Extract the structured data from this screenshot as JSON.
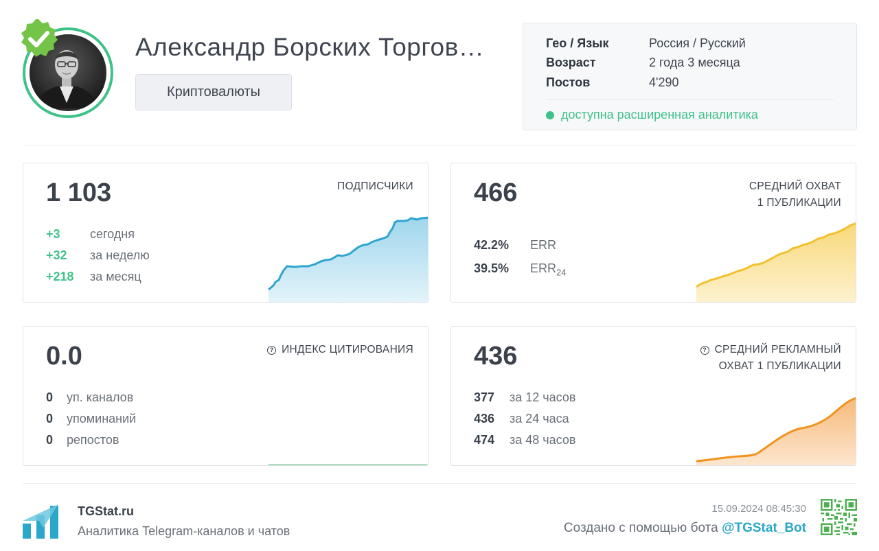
{
  "channel": {
    "title": "Александр Борских Торгов…",
    "category": "Криптовалюты"
  },
  "info": {
    "geo_label": "Гео / Язык",
    "geo_value": "Россия / Русский",
    "age_label": "Возраст",
    "age_value": "2 года 3 месяца",
    "posts_label": "Постов",
    "posts_value": "4'290",
    "analytics_text": "доступна расширенная аналитика"
  },
  "subscribers": {
    "value": "1 103",
    "label": "ПОДПИСЧИКИ",
    "rows": [
      {
        "n": "+3",
        "t": "сегодня"
      },
      {
        "n": "+32",
        "t": "за неделю"
      },
      {
        "n": "+218",
        "t": "за месяц"
      }
    ]
  },
  "reach": {
    "value": "466",
    "label_line1": "СРЕДНИЙ ОХВАТ",
    "label_line2": "1 ПУБЛИКАЦИИ",
    "err_value": "42.2%",
    "err_label": "ERR",
    "err24_value": "39.5%",
    "err24_label": "ERR",
    "err24_sub": "24"
  },
  "citation": {
    "value": "0.0",
    "label": "ИНДЕКС ЦИТИРОВАНИЯ",
    "rows": [
      {
        "n": "0",
        "t": "уп. каналов"
      },
      {
        "n": "0",
        "t": "упоминаний"
      },
      {
        "n": "0",
        "t": "репостов"
      }
    ]
  },
  "ad_reach": {
    "value": "436",
    "label_line1": "СРЕДНИЙ РЕКЛАМНЫЙ",
    "label_line2": "ОХВАТ 1 ПУБЛИКАЦИИ",
    "rows": [
      {
        "n": "377",
        "t": "за 12 часов"
      },
      {
        "n": "436",
        "t": "за 24 часа"
      },
      {
        "n": "474",
        "t": "за 48 часов"
      }
    ]
  },
  "footer": {
    "brand": "TGStat.ru",
    "subtitle": "Аналитика Telegram-каналов и чатов",
    "timestamp": "15.09.2024 08:45:30",
    "created_by": "Создано с помощью бота ",
    "bot": "@TGStat_Bot"
  },
  "colors": {
    "accent_green": "#3fc28a",
    "subscribers_line": "#2ea5cf",
    "reach_line": "#f2c12e",
    "ad_line": "#f0931f",
    "citation_line": "#3fb56a"
  },
  "icons": [
    "verified-badge-icon",
    "help-circle-icon",
    "tgstat-logo-icon",
    "qr-code-icon"
  ]
}
